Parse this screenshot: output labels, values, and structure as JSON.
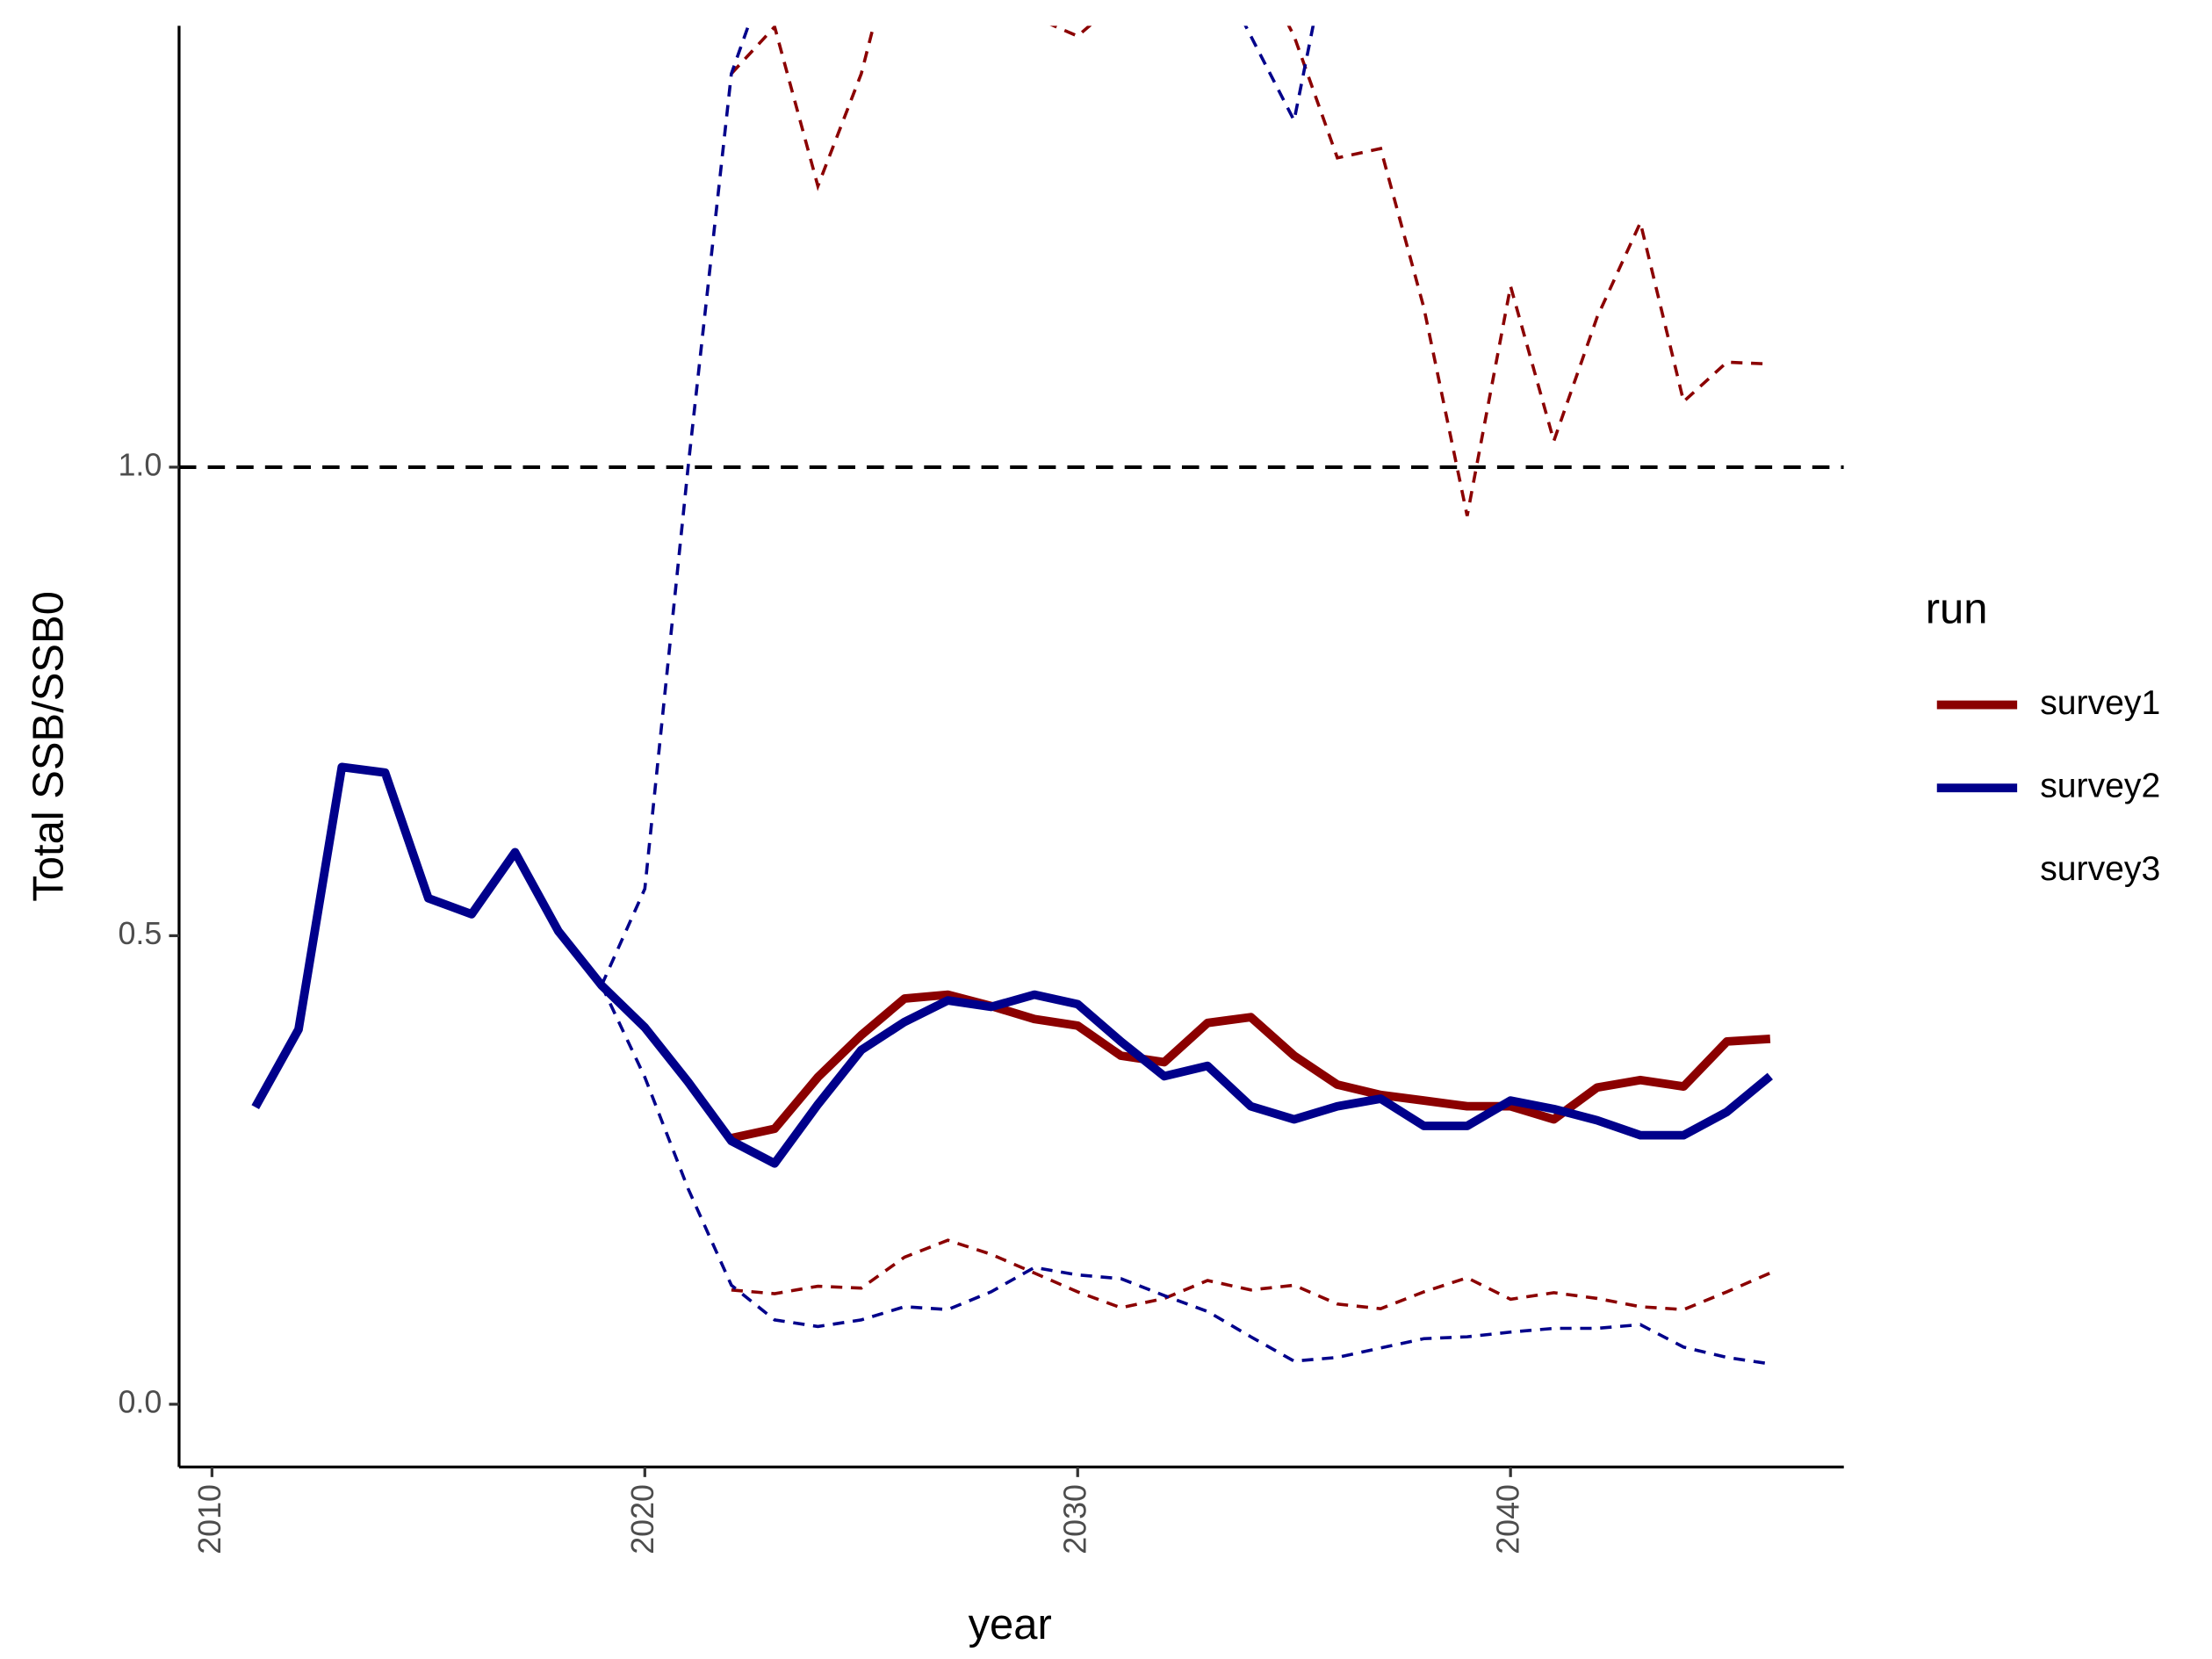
{
  "chart_data": {
    "type": "line",
    "x_label": "year",
    "y_label": "Total SSB/SSB0",
    "legend_title": "run",
    "legend": "right",
    "x": [
      2011,
      2012,
      2013,
      2014,
      2015,
      2016,
      2017,
      2018,
      2019,
      2020,
      2021,
      2022,
      2023,
      2024,
      2025,
      2026,
      2027,
      2028,
      2029,
      2030,
      2031,
      2032,
      2033,
      2034,
      2035,
      2036,
      2037,
      2038,
      2039,
      2040,
      2041,
      2042,
      2043,
      2044,
      2045,
      2046
    ],
    "hline": 1,
    "series": [
      {
        "name": "survey1",
        "color": "#8b0000",
        "values": [
          null,
          null,
          null,
          null,
          null,
          null,
          null,
          null,
          null,
          null,
          null,
          0.284,
          0.294,
          0.349,
          0.394,
          0.433,
          0.437,
          0.425,
          0.411,
          0.404,
          0.372,
          0.365,
          0.407,
          0.413,
          0.372,
          0.341,
          0.33,
          0.324,
          0.318,
          0.318,
          0.304,
          0.338,
          0.346,
          0.339,
          0.387,
          0.39
        ],
        "upper": [
          null,
          null,
          null,
          null,
          null,
          null,
          null,
          null,
          null,
          null,
          null,
          1.42,
          1.47,
          1.3,
          1.42,
          1.6,
          1.6,
          1.55,
          1.48,
          1.46,
          1.5,
          1.55,
          1.6,
          1.55,
          1.46,
          1.33,
          1.34,
          1.17,
          0.948,
          1.193,
          1.028,
          1.16,
          1.261,
          1.07,
          1.112,
          1.11
        ],
        "lower": [
          null,
          null,
          null,
          null,
          null,
          null,
          null,
          null,
          null,
          null,
          null,
          0.122,
          0.118,
          0.126,
          0.124,
          0.157,
          0.175,
          0.16,
          0.14,
          0.12,
          0.103,
          0.113,
          0.132,
          0.122,
          0.127,
          0.107,
          0.102,
          0.12,
          0.135,
          0.112,
          0.119,
          0.113,
          0.104,
          0.101,
          0.12,
          0.14
        ]
      },
      {
        "name": "survey2",
        "color": "#00008b",
        "values": [
          0.317,
          0.4,
          0.68,
          0.674,
          0.54,
          0.523,
          0.589,
          0.505,
          0.447,
          0.402,
          0.344,
          0.281,
          0.257,
          0.32,
          0.378,
          0.408,
          0.431,
          0.424,
          0.437,
          0.427,
          0.387,
          0.35,
          0.361,
          0.318,
          0.304,
          0.318,
          0.326,
          0.297,
          0.297,
          0.324,
          0.315,
          0.303,
          0.287,
          0.287,
          0.312,
          0.35
        ],
        "upper": [
          null,
          null,
          null,
          null,
          null,
          null,
          null,
          null,
          0.447,
          0.55,
          1.0,
          1.42,
          1.55,
          1.6,
          1.65,
          1.7,
          1.7,
          1.7,
          1.7,
          1.7,
          1.7,
          1.65,
          1.55,
          1.46,
          1.37,
          1.6,
          1.7,
          1.7,
          1.7,
          1.7,
          1.7,
          1.7,
          1.7,
          1.7,
          1.7,
          1.7
        ],
        "lower": [
          null,
          null,
          null,
          null,
          null,
          null,
          null,
          null,
          0.447,
          0.349,
          0.23,
          0.127,
          0.09,
          0.083,
          0.09,
          0.104,
          0.101,
          0.12,
          0.146,
          0.138,
          0.134,
          0.116,
          0.099,
          0.072,
          0.046,
          0.05,
          0.06,
          0.07,
          0.072,
          0.077,
          0.081,
          0.081,
          0.085,
          0.061,
          0.05,
          0.043
        ]
      },
      {
        "name": "survey3",
        "values": [
          null,
          null,
          null,
          null,
          null,
          null,
          null,
          null,
          null,
          null,
          null,
          null,
          null,
          null,
          null,
          null,
          null,
          null,
          null,
          null,
          null,
          null,
          null,
          null,
          null,
          null,
          null,
          null,
          null,
          null,
          null,
          null,
          null,
          null,
          null,
          null
        ]
      }
    ],
    "xlim": [
      2009.24,
      2047.7
    ],
    "xticks": [
      2010,
      2020,
      2030,
      2040
    ],
    "ylim": [
      -0.067,
      1.471
    ],
    "yticks": [
      {
        "value": 0,
        "label": "0.0"
      },
      {
        "value": 0.5,
        "label": "0.5"
      },
      {
        "value": 1,
        "label": "1.0"
      }
    ]
  }
}
